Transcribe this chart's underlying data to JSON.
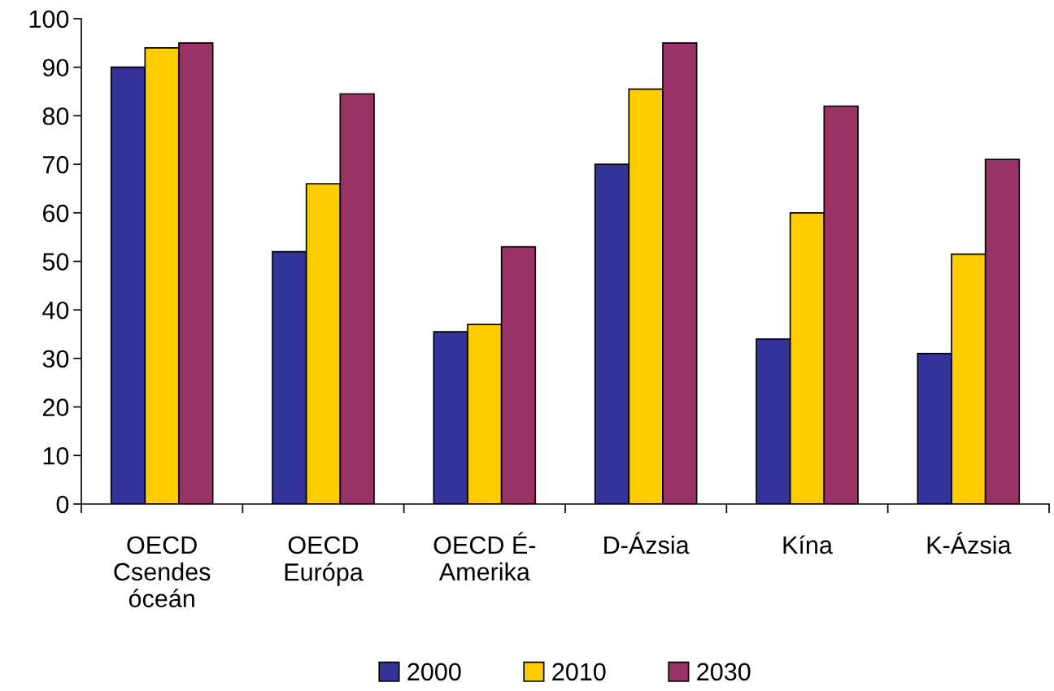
{
  "chart_data": {
    "type": "bar",
    "categories": [
      "OECD\nCsendes\nóceán",
      "OECD\nEurópa",
      "OECD É-\nAmerika",
      "D-Ázsia",
      "Kína",
      "K-Ázsia"
    ],
    "series": [
      {
        "name": "2000",
        "color": "#333399",
        "values": [
          90,
          52,
          35.5,
          70,
          34,
          31
        ]
      },
      {
        "name": "2010",
        "color": "#ffcc00",
        "values": [
          94,
          66,
          37,
          85.5,
          60,
          51.5
        ]
      },
      {
        "name": "2030",
        "color": "#993366",
        "values": [
          95,
          84.5,
          53,
          95,
          82,
          71
        ]
      }
    ],
    "ylim": [
      0,
      100
    ],
    "yticks": [
      0,
      10,
      20,
      30,
      40,
      50,
      60,
      70,
      80,
      90,
      100
    ],
    "grid": false,
    "legend": "bottom"
  }
}
